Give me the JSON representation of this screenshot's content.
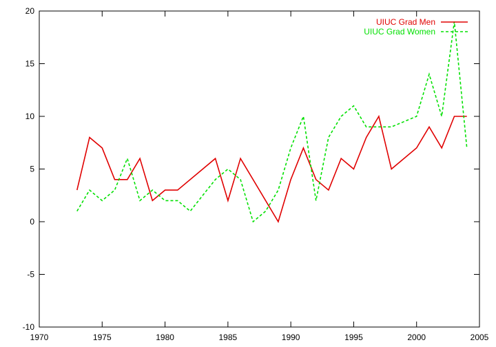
{
  "chart_data": {
    "type": "line",
    "title": "",
    "xlabel": "",
    "ylabel": "",
    "xlim": [
      1970,
      2005
    ],
    "ylim": [
      -10,
      20
    ],
    "xticks": [
      1970,
      1975,
      1980,
      1985,
      1990,
      1995,
      2000,
      2005
    ],
    "yticks": [
      -10,
      -5,
      0,
      5,
      10,
      15,
      20
    ],
    "grid": false,
    "legend_position": "top-right",
    "series": [
      {
        "name": "UIUC Grad Men",
        "color": "#e00000",
        "dash": "solid",
        "x": [
          1973,
          1974,
          1975,
          1976,
          1977,
          1978,
          1979,
          1980,
          1981,
          1984,
          1985,
          1986,
          1989,
          1990,
          1991,
          1992,
          1993,
          1994,
          1995,
          1996,
          1997,
          1998,
          2000,
          2001,
          2002,
          2003,
          2004
        ],
        "y": [
          3,
          8,
          7,
          4,
          4,
          6,
          2,
          3,
          3,
          6,
          2,
          6,
          0,
          4,
          7,
          4,
          3,
          6,
          5,
          8,
          10,
          5,
          7,
          9,
          7,
          10,
          10
        ]
      },
      {
        "name": "UIUC Grad Women",
        "color": "#00e000",
        "dash": "dashed",
        "x": [
          1973,
          1974,
          1975,
          1976,
          1977,
          1978,
          1979,
          1980,
          1981,
          1982,
          1984,
          1985,
          1986,
          1987,
          1988,
          1989,
          1990,
          1991,
          1992,
          1993,
          1994,
          1995,
          1996,
          1997,
          1998,
          2000,
          2001,
          2002,
          2003,
          2004
        ],
        "y": [
          1,
          3,
          2,
          3,
          6,
          2,
          3,
          2,
          2,
          1,
          4,
          5,
          4,
          0,
          1,
          3,
          7,
          10,
          2,
          8,
          10,
          11,
          9,
          9,
          9,
          10,
          14,
          10,
          19,
          7
        ]
      }
    ]
  }
}
